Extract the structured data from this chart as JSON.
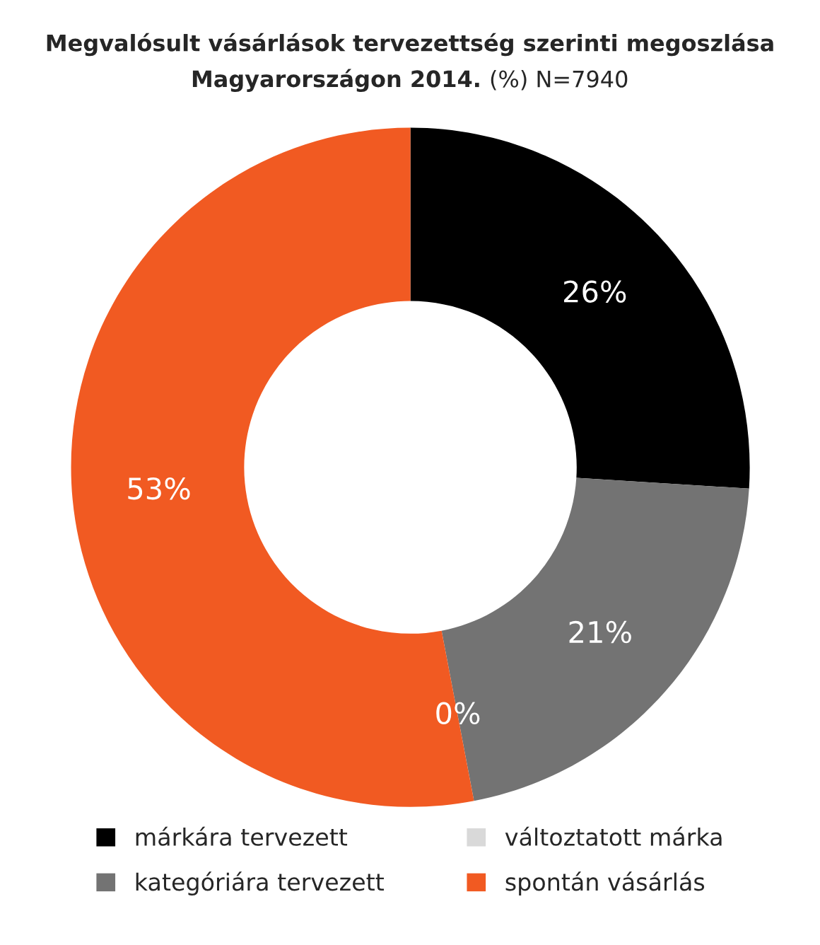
{
  "chart_data": {
    "type": "donut",
    "title": "Megvalósult vásárlások tervezettség szerinti megoszlása\nMagyarországon 2014.",
    "subtitle": "(%) N=7940",
    "categories": [
      "márkára tervezett",
      "kategóriára tervezett",
      "változtatott márka",
      "spontán vásárlás"
    ],
    "values": [
      26,
      21,
      0,
      53
    ],
    "colors": [
      "#000000",
      "#737373",
      "#d9d9d9",
      "#f15a22"
    ],
    "value_labels": [
      "26%",
      "21%",
      "0%",
      "53%"
    ],
    "legend": "bottom"
  }
}
